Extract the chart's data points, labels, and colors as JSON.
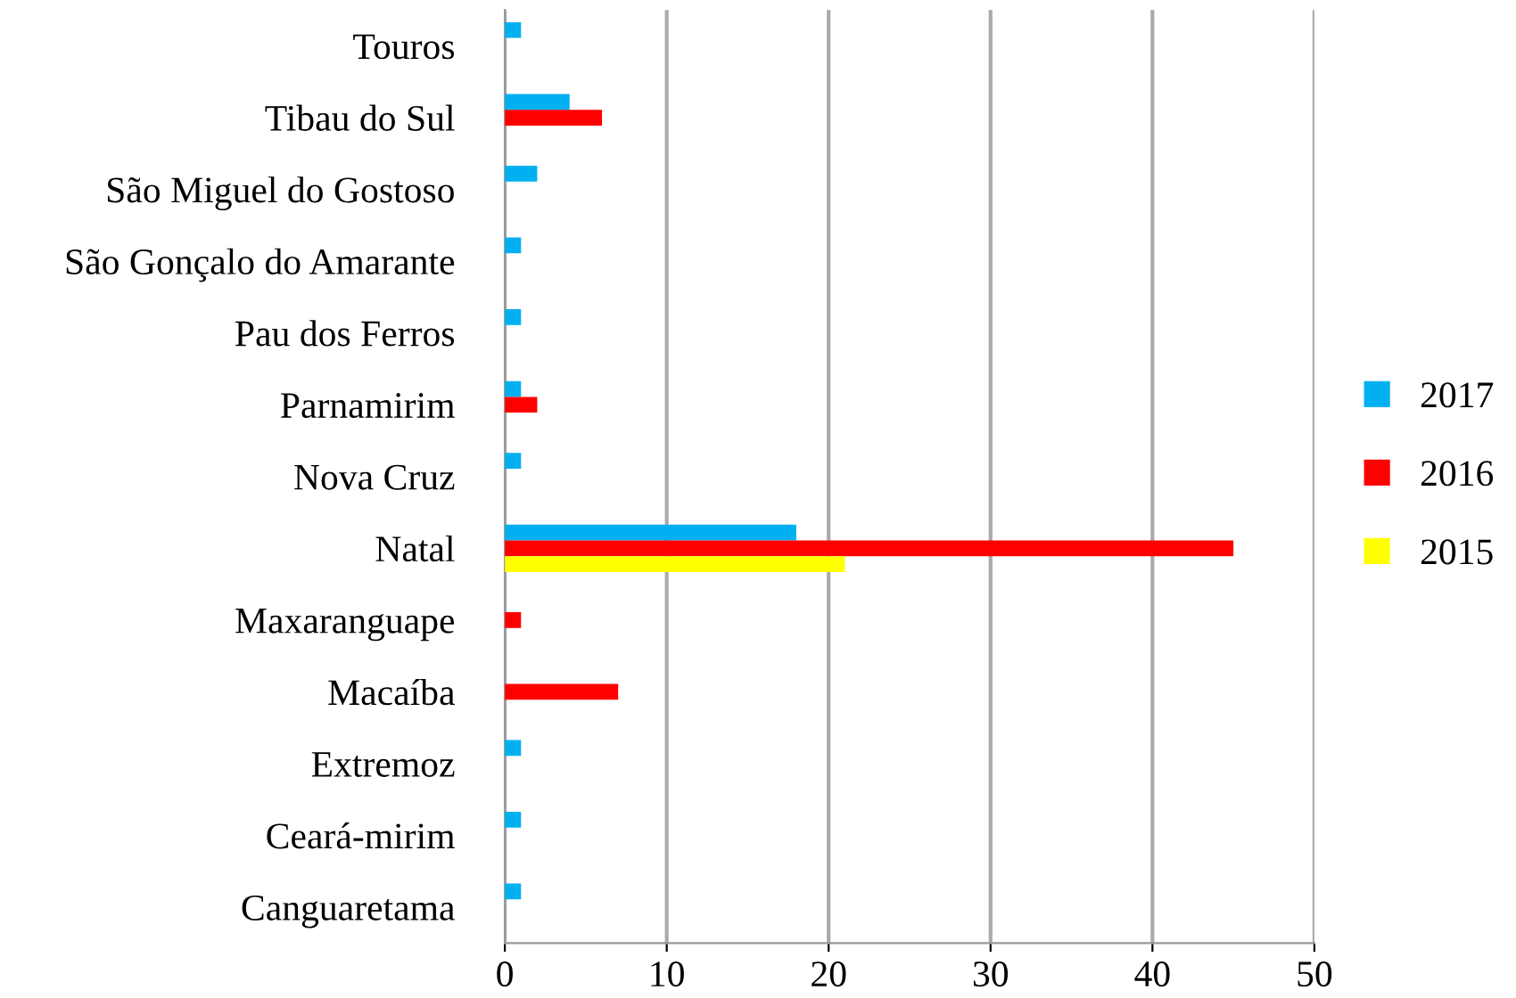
{
  "chart_data": {
    "type": "bar",
    "orientation": "horizontal",
    "categories": [
      "Touros",
      "Tibau do Sul",
      "São Miguel do Gostoso",
      "São Gonçalo do Amarante",
      "Pau dos Ferros",
      "Parnamirim",
      "Nova Cruz",
      "Natal",
      "Maxaranguape",
      "Macaíba",
      "Extremoz",
      "Ceará-mirim",
      "Canguaretama"
    ],
    "series": [
      {
        "name": "2017",
        "color": "#00b0f0",
        "values": [
          1,
          4,
          2,
          1,
          1,
          1,
          1,
          18,
          null,
          null,
          1,
          1,
          1
        ]
      },
      {
        "name": "2016",
        "color": "#ff0000",
        "values": [
          null,
          6,
          null,
          null,
          null,
          2,
          null,
          45,
          1,
          7,
          null,
          null,
          null
        ]
      },
      {
        "name": "2015",
        "color": "#ffff00",
        "values": [
          null,
          null,
          null,
          null,
          null,
          null,
          null,
          21,
          null,
          null,
          null,
          null,
          null
        ]
      }
    ],
    "xlim": [
      0,
      50
    ],
    "xticks": [
      0,
      10,
      20,
      30,
      40,
      50
    ],
    "grid": "x",
    "legend": "right"
  }
}
